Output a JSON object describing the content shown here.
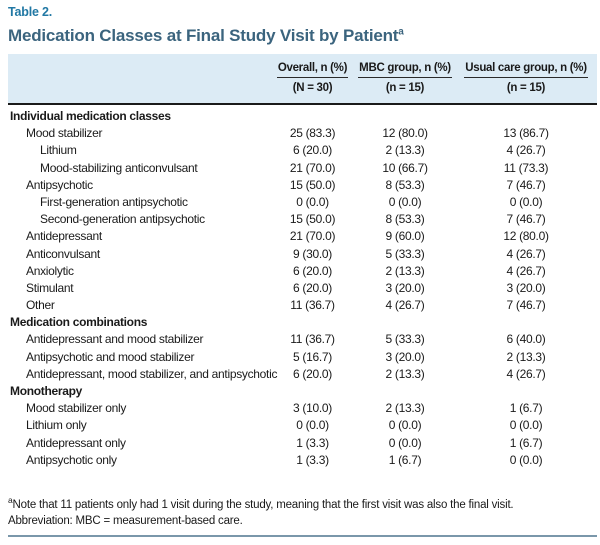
{
  "table": {
    "label": "Table 2.",
    "title": "Medication Classes at Final Study Visit by Patient",
    "title_superscript": "a",
    "columns": [
      {
        "header": "Overall, n (%)",
        "subheader": "(N = 30)"
      },
      {
        "header": "MBC group, n (%)",
        "subheader": "(n = 15)"
      },
      {
        "header": "Usual care group, n (%)",
        "subheader": "(n = 15)"
      }
    ],
    "sections": [
      {
        "title": "Individual medication classes",
        "rows": [
          {
            "label": "Mood stabilizer",
            "indent": 1,
            "values": [
              "25 (83.3)",
              "12 (80.0)",
              "13 (86.7)"
            ]
          },
          {
            "label": "Lithium",
            "indent": 2,
            "values": [
              "6 (20.0)",
              "2 (13.3)",
              "4 (26.7)"
            ]
          },
          {
            "label": "Mood-stabilizing anticonvulsant",
            "indent": 2,
            "values": [
              "21 (70.0)",
              "10 (66.7)",
              "11 (73.3)"
            ]
          },
          {
            "label": "Antipsychotic",
            "indent": 1,
            "values": [
              "15 (50.0)",
              "8 (53.3)",
              "7 (46.7)"
            ]
          },
          {
            "label": "First-generation antipsychotic",
            "indent": 2,
            "values": [
              "0 (0.0)",
              "0 (0.0)",
              "0 (0.0)"
            ]
          },
          {
            "label": "Second-generation antipsychotic",
            "indent": 2,
            "values": [
              "15 (50.0)",
              "8 (53.3)",
              "7 (46.7)"
            ]
          },
          {
            "label": "Antidepressant",
            "indent": 1,
            "values": [
              "21 (70.0)",
              "9 (60.0)",
              "12 (80.0)"
            ]
          },
          {
            "label": "Anticonvulsant",
            "indent": 1,
            "values": [
              "9 (30.0)",
              "5 (33.3)",
              "4 (26.7)"
            ]
          },
          {
            "label": "Anxiolytic",
            "indent": 1,
            "values": [
              "6 (20.0)",
              "2 (13.3)",
              "4 (26.7)"
            ]
          },
          {
            "label": "Stimulant",
            "indent": 1,
            "values": [
              "6 (20.0)",
              "3 (20.0)",
              "3 (20.0)"
            ]
          },
          {
            "label": "Other",
            "indent": 1,
            "values": [
              "11 (36.7)",
              "4 (26.7)",
              "7 (46.7)"
            ]
          }
        ]
      },
      {
        "title": "Medication combinations",
        "rows": [
          {
            "label": "Antidepressant and mood stabilizer",
            "indent": 1,
            "values": [
              "11 (36.7)",
              "5 (33.3)",
              "6 (40.0)"
            ]
          },
          {
            "label": "Antipsychotic and mood stabilizer",
            "indent": 1,
            "values": [
              "5 (16.7)",
              "3 (20.0)",
              "2 (13.3)"
            ]
          },
          {
            "label": "Antidepressant, mood stabilizer, and antipsychotic",
            "indent": 1,
            "values": [
              "6 (20.0)",
              "2 (13.3)",
              "4 (26.7)"
            ]
          }
        ]
      },
      {
        "title": "Monotherapy",
        "rows": [
          {
            "label": "Mood stabilizer only",
            "indent": 1,
            "values": [
              "3 (10.0)",
              "2 (13.3)",
              "1 (6.7)"
            ]
          },
          {
            "label": "Lithium only",
            "indent": 1,
            "values": [
              "0 (0.0)",
              "0 (0.0)",
              "0 (0.0)"
            ]
          },
          {
            "label": "Antidepressant only",
            "indent": 1,
            "values": [
              "1 (3.3)",
              "0 (0.0)",
              "1 (6.7)"
            ]
          },
          {
            "label": "Antipsychotic only",
            "indent": 1,
            "values": [
              "1 (3.3)",
              "1 (6.7)",
              "0 (0.0)"
            ]
          }
        ]
      }
    ],
    "footnotes": [
      {
        "marker": "a",
        "text": "Note that 11 patients only had 1 visit during the study, meaning that the first visit was also the final visit."
      },
      {
        "marker": "",
        "text": "Abbreviation: MBC = measurement-based care."
      }
    ],
    "colors": {
      "table_label": "#2178A4",
      "title": "#3B647E",
      "header_band_bg": "#DCEBF5",
      "rule_dark": "#1A1A1A",
      "rule_bottom": "#7A97AA",
      "text": "#1A1A1A"
    }
  }
}
